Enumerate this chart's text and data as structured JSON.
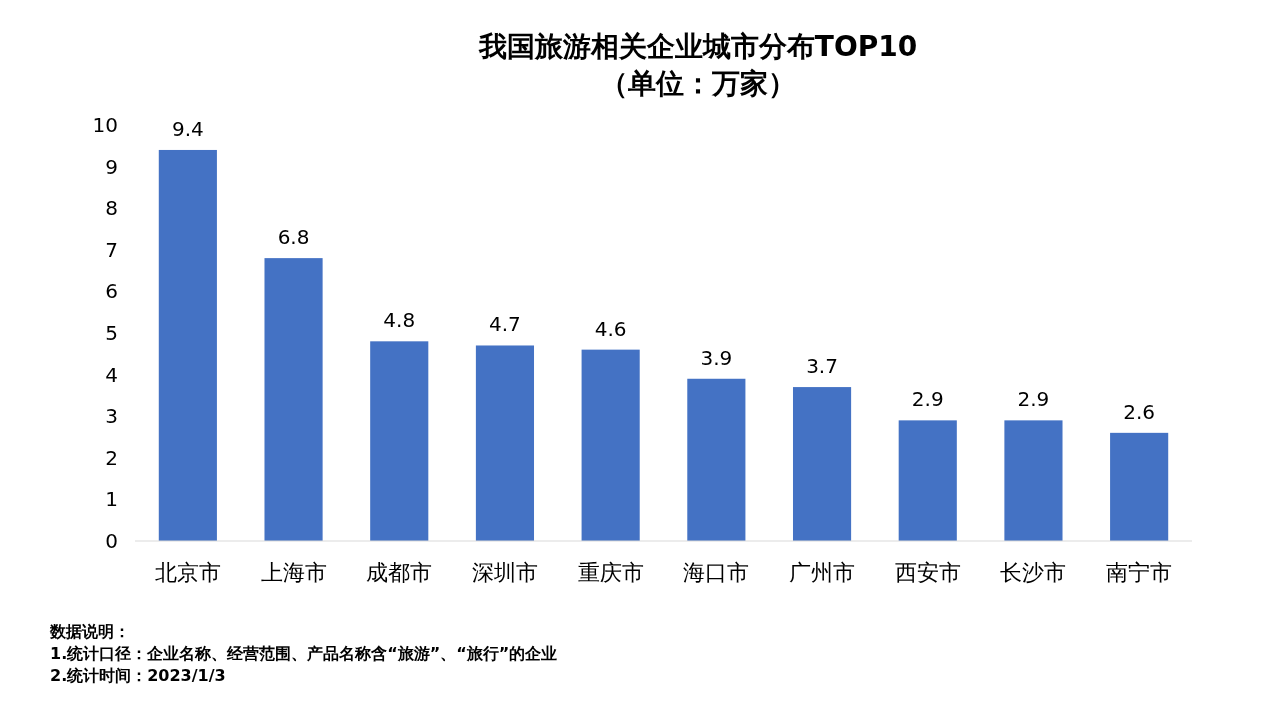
{
  "chart_data": {
    "type": "bar",
    "title": "我国旅游相关企业城市分布TOP10",
    "subtitle": "（单位：万家）",
    "categories": [
      "北京市",
      "上海市",
      "成都市",
      "深圳市",
      "重庆市",
      "海口市",
      "广州市",
      "西安市",
      "长沙市",
      "南宁市"
    ],
    "values": [
      9.4,
      6.8,
      4.8,
      4.7,
      4.6,
      3.9,
      3.7,
      2.9,
      2.9,
      2.6
    ],
    "color": "#4472c4",
    "ylim": [
      0,
      10
    ],
    "yticks": [
      0,
      1,
      2,
      3,
      4,
      5,
      6,
      7,
      8,
      9,
      10
    ],
    "grid": false,
    "data_labels": true,
    "annotations": [
      "数据说明：",
      "1.统计口径：企业名称、经营范围、产品名称含“旅游”、“旅行”的企业",
      "2.统计时间：2023/1/3"
    ]
  }
}
